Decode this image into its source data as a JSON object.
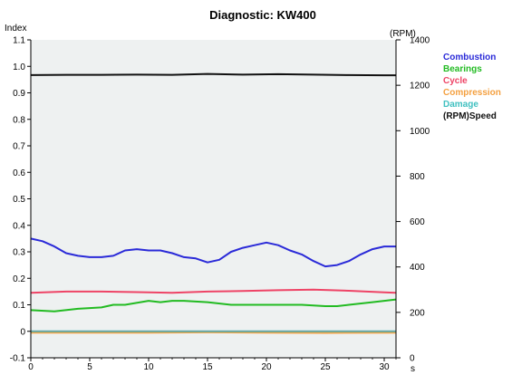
{
  "chart_data": {
    "type": "line",
    "title": "Diagnostic:  KW400",
    "ylabel": "Index",
    "y2label": "(RPM)",
    "xlabel": "s",
    "xlim": [
      0,
      31
    ],
    "ylim": [
      -0.1,
      1.1
    ],
    "y2lim": [
      0,
      1400
    ],
    "x_ticks": [
      0,
      5,
      10,
      15,
      20,
      25,
      30
    ],
    "y_ticks": [
      "-0.1",
      "0",
      "0.1",
      "0.2",
      "0.3",
      "0.4",
      "0.5",
      "0.6",
      "0.7",
      "0.8",
      "0.9",
      "1.0",
      "1.1"
    ],
    "y2_ticks": [
      0,
      200,
      400,
      600,
      800,
      1000,
      1200,
      1400
    ],
    "grid": false,
    "legend_position": "right",
    "series": [
      {
        "name": "Combustion",
        "color": "#2a2ad8",
        "axis": "left",
        "x": [
          0,
          1,
          2,
          3,
          4,
          5,
          6,
          7,
          8,
          9,
          10,
          11,
          12,
          13,
          14,
          15,
          16,
          17,
          18,
          19,
          20,
          21,
          22,
          23,
          24,
          25,
          26,
          27,
          28,
          29,
          30,
          31
        ],
        "y": [
          0.35,
          0.34,
          0.32,
          0.295,
          0.285,
          0.28,
          0.28,
          0.285,
          0.305,
          0.31,
          0.305,
          0.305,
          0.295,
          0.28,
          0.275,
          0.26,
          0.27,
          0.3,
          0.315,
          0.325,
          0.335,
          0.325,
          0.305,
          0.29,
          0.265,
          0.245,
          0.25,
          0.265,
          0.29,
          0.31,
          0.32,
          0.32
        ]
      },
      {
        "name": "Bearings",
        "color": "#22bb22",
        "axis": "left",
        "x": [
          0,
          2,
          4,
          6,
          7,
          8,
          10,
          11,
          12,
          13,
          15,
          17,
          19,
          21,
          23,
          25,
          26,
          27,
          29,
          31
        ],
        "y": [
          0.08,
          0.075,
          0.085,
          0.09,
          0.1,
          0.1,
          0.115,
          0.11,
          0.115,
          0.115,
          0.11,
          0.1,
          0.1,
          0.1,
          0.1,
          0.095,
          0.095,
          0.1,
          0.11,
          0.12
        ]
      },
      {
        "name": "Cycle",
        "color": "#ee4466",
        "axis": "left",
        "x": [
          0,
          3,
          6,
          9,
          12,
          15,
          18,
          21,
          24,
          27,
          30,
          31
        ],
        "y": [
          0.145,
          0.15,
          0.15,
          0.148,
          0.145,
          0.15,
          0.152,
          0.155,
          0.157,
          0.153,
          0.147,
          0.145
        ]
      },
      {
        "name": "Compression",
        "color": "#f4a040",
        "axis": "left",
        "x": [
          0,
          5,
          10,
          15,
          20,
          25,
          31
        ],
        "y": [
          -0.005,
          -0.005,
          -0.005,
          -0.004,
          -0.005,
          -0.006,
          -0.005
        ]
      },
      {
        "name": "Damage",
        "color": "#40c0c0",
        "axis": "left",
        "x": [
          0,
          5,
          10,
          15,
          20,
          25,
          31
        ],
        "y": [
          0,
          0,
          0,
          0,
          0,
          0,
          0
        ]
      },
      {
        "name": "(RPM)Speed",
        "color": "#111111",
        "axis": "right",
        "x": [
          0,
          3,
          6,
          9,
          12,
          15,
          18,
          21,
          24,
          27,
          30,
          31
        ],
        "y": [
          1245,
          1246,
          1246,
          1247,
          1246,
          1250,
          1247,
          1249,
          1247,
          1245,
          1244,
          1244
        ]
      }
    ]
  }
}
